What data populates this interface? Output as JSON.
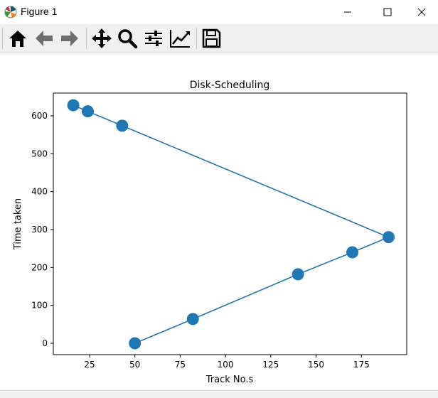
{
  "window": {
    "title": "Figure 1",
    "app_icon": "matplotlib-logo-icon",
    "controls": [
      "minimize-icon",
      "maximize-icon",
      "close-icon"
    ]
  },
  "toolbar": {
    "buttons": [
      "home-icon",
      "back-arrow-icon",
      "forward-arrow-icon",
      "pan-move-icon",
      "zoom-magnifier-icon",
      "configure-subplots-icon",
      "edit-axis-icon",
      "save-disk-icon"
    ]
  },
  "chart_data": {
    "type": "line",
    "title": "Disk-Scheduling",
    "xlabel": "Track No.s",
    "ylabel": "Time taken",
    "x": [
      50,
      82,
      140,
      170,
      190,
      43,
      24,
      16
    ],
    "y": [
      0,
      64,
      182,
      240,
      280,
      574,
      612,
      628
    ],
    "xlim": [
      5,
      200
    ],
    "ylim": [
      -30,
      660
    ],
    "xticks": [
      25,
      50,
      75,
      100,
      125,
      150,
      175
    ],
    "yticks": [
      0,
      100,
      200,
      300,
      400,
      500,
      600
    ],
    "marker": "circle",
    "grid": false,
    "color": "#1f77b4"
  }
}
